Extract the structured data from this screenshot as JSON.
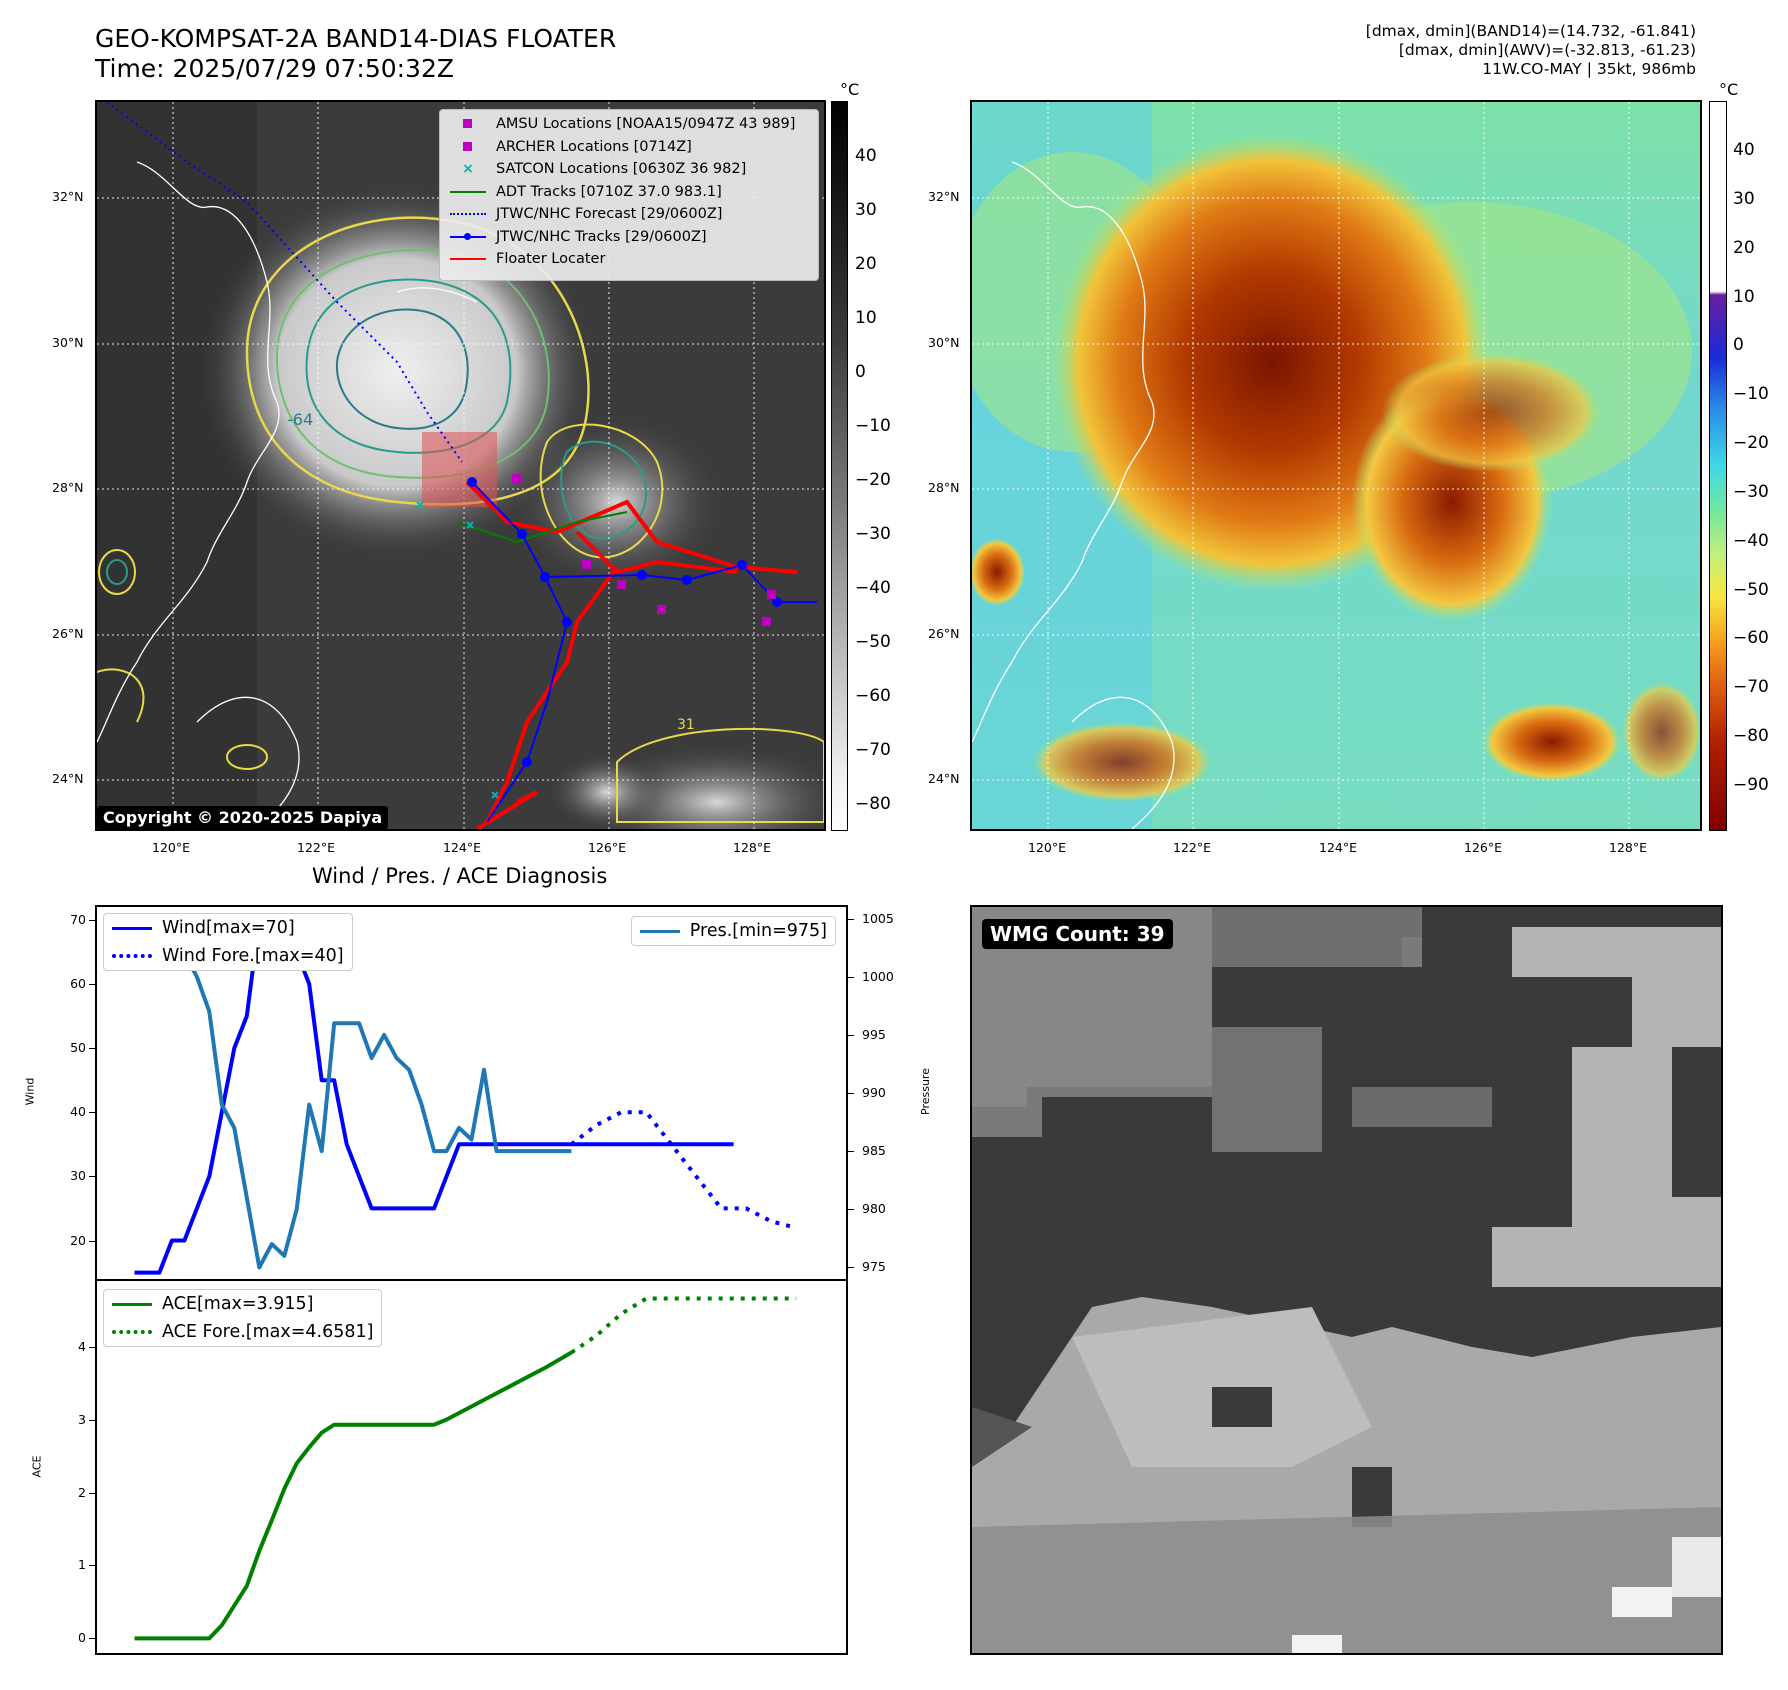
{
  "header": {
    "title_line1": "GEO-KOMPSAT-2A BAND14-DIAS FLOATER",
    "title_line2": "Time: 2025/07/29 07:50:32Z",
    "meta_line1": "[dmax, dmin](BAND14)=(14.732, -61.841)",
    "meta_line2": "[dmax, dmin](AWV)=(-32.813, -61.23)",
    "meta_line3": "11W.CO-MAY | 35kt, 986mb"
  },
  "ir_map": {
    "lat_labels": [
      "32°N",
      "30°N",
      "28°N",
      "26°N",
      "24°N"
    ],
    "lon_labels": [
      "120°E",
      "122°E",
      "124°E",
      "126°E",
      "128°E"
    ],
    "copyright": "Copyright © 2020-2025 Dapiya",
    "contour_labels": [
      "-64",
      "31"
    ],
    "legend": [
      {
        "label": "AMSU Locations [NOAA15/0947Z 43 989]",
        "color": "#c000c0",
        "icon": "square-marker"
      },
      {
        "label": "ARCHER Locations [0714Z]",
        "color": "#c000c0",
        "icon": "square-marker"
      },
      {
        "label": "SATCON Locations [0630Z 36 982]",
        "color": "#00b3b3",
        "icon": "x-marker"
      },
      {
        "label": "ADT Tracks [0710Z 37.0 983.1]",
        "color": "#008000",
        "icon": "solid-line"
      },
      {
        "label": "JTWC/NHC Forecast [29/0600Z]",
        "color": "#0000ff",
        "icon": "dotted-line"
      },
      {
        "label": "JTWC/NHC Tracks [29/0600Z]",
        "color": "#0000ff",
        "icon": "line-with-dots"
      },
      {
        "label": "Floater Locater",
        "color": "#ff0000",
        "icon": "solid-line"
      }
    ],
    "colorbar_unit": "°C",
    "colorbar_ticks": [
      "40",
      "30",
      "20",
      "10",
      "0",
      "−10",
      "−20",
      "−30",
      "−40",
      "−50",
      "−60",
      "−70",
      "−80"
    ]
  },
  "color_map": {
    "lat_labels": [
      "32°N",
      "30°N",
      "28°N",
      "26°N",
      "24°N"
    ],
    "lon_labels": [
      "120°E",
      "122°E",
      "124°E",
      "126°E",
      "128°E"
    ],
    "colorbar_unit": "°C",
    "colorbar_ticks": [
      "40",
      "30",
      "20",
      "10",
      "0",
      "−10",
      "−20",
      "−30",
      "−40",
      "−50",
      "−60",
      "−70",
      "−80",
      "−90"
    ]
  },
  "diagnosis": {
    "title": "Wind / Pres. / ACE Diagnosis",
    "wind_ylabel": "Wind",
    "pressure_ylabel": "Pressure",
    "ace_ylabel": "ACE",
    "wind_ticks": [
      "70",
      "60",
      "50",
      "40",
      "30",
      "20"
    ],
    "pressure_ticks": [
      "1005",
      "1000",
      "995",
      "990",
      "985",
      "980",
      "975"
    ],
    "ace_ticks": [
      "4",
      "3",
      "2",
      "1",
      "0"
    ],
    "legend_wind": "Wind[max=70]",
    "legend_wind_fore": "Wind Fore.[max=40]",
    "legend_pres": "Pres.[min=975]",
    "legend_ace": "ACE[max=3.915]",
    "legend_ace_fore": "ACE Fore.[max=4.6581]"
  },
  "wmg": {
    "label": "WMG Count: 39"
  },
  "chart_data": [
    {
      "type": "line",
      "title": "Wind / Pres. / ACE Diagnosis",
      "ylabel": "Wind",
      "ylim": [
        14,
        72
      ],
      "series": [
        {
          "name": "Wind[max=70]",
          "color": "#0000ff",
          "style": "solid",
          "x": [
            0,
            1,
            2,
            3,
            4,
            5,
            6,
            7,
            8,
            9,
            10,
            11,
            12,
            13,
            14,
            15,
            16,
            17,
            18,
            19,
            20,
            21,
            22,
            23,
            24,
            25,
            26,
            27,
            28,
            29,
            30,
            31,
            32,
            33,
            34,
            35,
            36,
            37,
            38,
            39,
            40,
            41,
            42,
            43,
            44,
            45,
            46,
            47,
            48
          ],
          "y": [
            15,
            15,
            15,
            20,
            20,
            25,
            30,
            40,
            50,
            55,
            70,
            70,
            65,
            65,
            60,
            45,
            45,
            35,
            30,
            25,
            25,
            25,
            25,
            25,
            25,
            30,
            35,
            35,
            35,
            35,
            35,
            35,
            35,
            35,
            35,
            35,
            35,
            35,
            35,
            35,
            35,
            35,
            35,
            35,
            35,
            35,
            35,
            35,
            35
          ]
        },
        {
          "name": "Wind Fore.[max=40]",
          "color": "#0000ff",
          "style": "dotted",
          "x": [
            35,
            37,
            39,
            41,
            43,
            45,
            47,
            49,
            51,
            53
          ],
          "y": [
            35,
            38,
            40,
            40,
            35,
            30,
            25,
            25,
            23,
            22
          ]
        }
      ]
    },
    {
      "type": "line",
      "ylabel": "Pressure",
      "ylim": [
        974,
        1006
      ],
      "series": [
        {
          "name": "Pres.[min=975]",
          "color": "#1f77b4",
          "style": "solid",
          "x": [
            0,
            2,
            3,
            4,
            5,
            6,
            7,
            8,
            9,
            10,
            11,
            12,
            13,
            14,
            15,
            16,
            17,
            18,
            19,
            20,
            21,
            22,
            23,
            24,
            25,
            26,
            27,
            28,
            29,
            30,
            31,
            32,
            33,
            34,
            35
          ],
          "y": [
            1005,
            1005,
            1005,
            1002,
            1000,
            997,
            989,
            987,
            981,
            975,
            977,
            976,
            980,
            989,
            985,
            996,
            996,
            996,
            993,
            995,
            993,
            992,
            989,
            985,
            985,
            987,
            986,
            992,
            985,
            985,
            985,
            985,
            985,
            985,
            985
          ]
        }
      ]
    },
    {
      "type": "line",
      "ylabel": "ACE",
      "ylim": [
        -0.2,
        4.9
      ],
      "series": [
        {
          "name": "ACE[max=3.915]",
          "color": "#008000",
          "style": "solid",
          "x": [
            0,
            2,
            4,
            6,
            7,
            8,
            9,
            10,
            11,
            12,
            13,
            14,
            15,
            16,
            17,
            18,
            19,
            20,
            21,
            22,
            23,
            24,
            25,
            26,
            27,
            28,
            29,
            30,
            31,
            32,
            33,
            34,
            35
          ],
          "y": [
            0,
            0,
            0,
            0,
            0.18,
            0.45,
            0.72,
            1.2,
            1.62,
            2.05,
            2.4,
            2.62,
            2.82,
            2.93,
            2.93,
            2.93,
            2.93,
            2.93,
            2.93,
            2.93,
            2.93,
            2.93,
            3.0,
            3.09,
            3.18,
            3.27,
            3.36,
            3.45,
            3.54,
            3.63,
            3.72,
            3.82,
            3.92
          ]
        },
        {
          "name": "ACE Fore.[max=4.6581]",
          "color": "#008000",
          "style": "dotted",
          "x": [
            35,
            37,
            39,
            41,
            43,
            45,
            47,
            49,
            51,
            53
          ],
          "y": [
            3.92,
            4.15,
            4.45,
            4.66,
            4.66,
            4.66,
            4.66,
            4.66,
            4.66,
            4.66
          ]
        }
      ]
    }
  ]
}
